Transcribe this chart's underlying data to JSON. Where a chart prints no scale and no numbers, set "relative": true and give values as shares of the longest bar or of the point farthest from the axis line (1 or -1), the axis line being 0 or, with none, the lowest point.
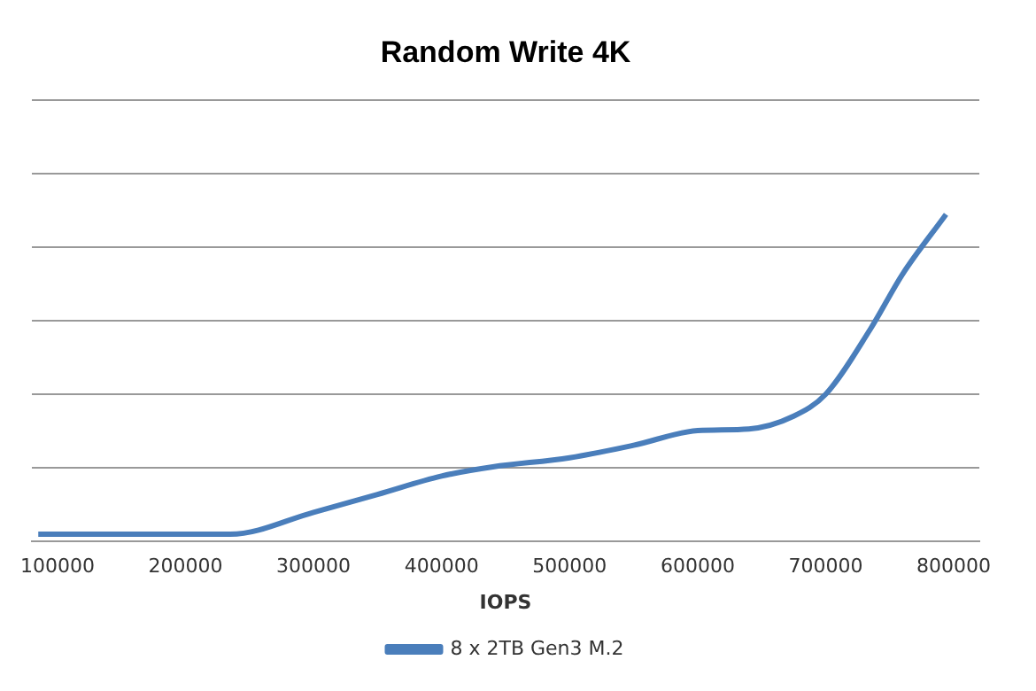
{
  "chart_data": {
    "type": "line",
    "title": "Random Write 4K",
    "xlabel": "IOPS",
    "relative": true,
    "xlim": [
      80000,
      820000
    ],
    "xticks": [
      100000,
      200000,
      300000,
      400000,
      500000,
      600000,
      700000,
      800000
    ],
    "grid": "y",
    "legend": "bottom",
    "marker": "none",
    "line_style": "solid",
    "series": [
      {
        "name": "8 x 2TB Gen3 M.2",
        "color": "#4a7ebb",
        "x": [
          85000,
          160000,
          235000,
          300000,
          350000,
          400000,
          440000,
          500000,
          550000,
          600000,
          640000,
          675000,
          700000,
          735000,
          760000,
          794000
        ],
        "values": [
          0.022,
          0.022,
          0.022,
          0.089,
          0.144,
          0.2,
          0.228,
          0.256,
          0.294,
          0.339,
          0.344,
          0.383,
          0.45,
          0.65,
          0.817,
          1
        ]
      }
    ]
  }
}
